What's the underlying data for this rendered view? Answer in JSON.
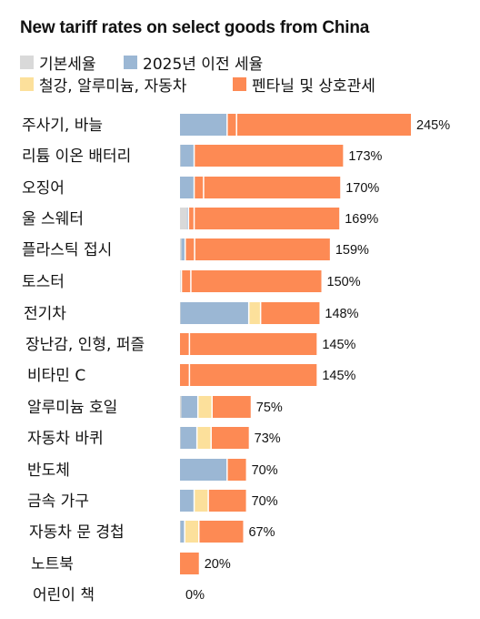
{
  "chart_data": {
    "type": "bar",
    "orientation": "horizontal",
    "stacked": true,
    "title": "New tariff rates on select goods from China",
    "categories": [
      "주사기, 바늘",
      "리튬 이온 배터리",
      "오징어",
      "울 스웨터",
      "플라스틱 접시",
      "토스터",
      "전기차",
      "장난감, 인형, 퍼즐",
      "비타민 C",
      "알루미늄 호일",
      "자동차 바퀴",
      "반도체",
      "금속 가구",
      "자동차 문 경첩",
      "노트북",
      "어린이 책"
    ],
    "totals": [
      "245%",
      "173%",
      "170%",
      "169%",
      "159%",
      "150%",
      "148%",
      "145%",
      "145%",
      "75%",
      "73%",
      "70%",
      "70%",
      "67%",
      "20%",
      "0%"
    ],
    "series": [
      {
        "name": "기본세율",
        "color": "#d9d9d9",
        "values": [
          0,
          0.5,
          0,
          7.5,
          1.5,
          1.5,
          0.5,
          0,
          0,
          1.5,
          0.5,
          0,
          0,
          0.5,
          0,
          0
        ]
      },
      {
        "name": "2025년 이전 세율",
        "color": "#9bb7d4",
        "values": [
          50,
          15,
          15,
          1.5,
          4,
          0,
          72.5,
          0,
          0,
          17.5,
          17.5,
          50,
          15,
          4.5,
          0,
          0
        ]
      },
      {
        "name": "철강, 알루미늄, 자동차",
        "color": "#fce09b",
        "values": [
          0,
          0,
          0,
          0,
          0,
          0,
          12.5,
          0,
          0,
          15,
          15,
          0,
          15,
          15,
          0,
          0
        ]
      },
      {
        "name": "펜타닐 및 상호관세",
        "color": "#fd8a54",
        "values": [
          195,
          157.5,
          155,
          160,
          153.5,
          148.5,
          62.5,
          145,
          145,
          41,
          40,
          20,
          40,
          47,
          20,
          0
        ]
      }
    ],
    "segment_dividers": [
      [
        50,
        60
      ],
      [
        15
      ],
      [
        15,
        25
      ],
      [
        9,
        15
      ],
      [
        5.5,
        15.5
      ],
      [
        1.5,
        11.5
      ],
      [
        73,
        85.5
      ],
      [
        10
      ],
      [
        10
      ],
      [
        19,
        34
      ],
      [
        18,
        33
      ],
      [
        50
      ],
      [
        15,
        30
      ],
      [
        5,
        20
      ],
      [],
      []
    ],
    "xlim": [
      0,
      245
    ]
  }
}
